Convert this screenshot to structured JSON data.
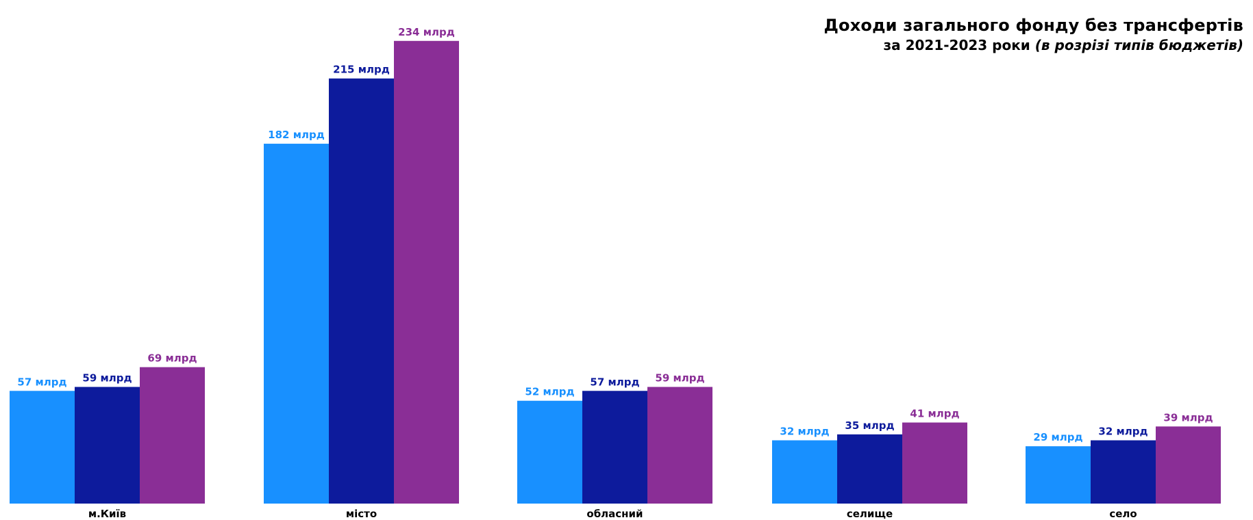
{
  "chart_data": {
    "type": "bar",
    "title": "Доходи загального фонду без трансфертів",
    "subtitle_main": "за 2021-2023 роки",
    "subtitle_italic": "(в розрізі типів бюджетів)",
    "categories": [
      "м.Київ",
      "місто",
      "обласний",
      "селище",
      "село"
    ],
    "series": [
      {
        "key": "s2021",
        "values": [
          57,
          182,
          52,
          32,
          29
        ],
        "labels": [
          "57 млрд",
          "182 млрд",
          "52 млрд",
          "32 млрд",
          "29 млрд"
        ],
        "color": "#1890ff"
      },
      {
        "key": "s2022",
        "values": [
          59,
          215,
          57,
          35,
          32
        ],
        "labels": [
          "59 млрд",
          "215 млрд",
          "57 млрд",
          "35 млрд",
          "32 млрд"
        ],
        "color": "#0d1b9c"
      },
      {
        "key": "s2023",
        "values": [
          69,
          234,
          59,
          41,
          39
        ],
        "labels": [
          "69 млрд",
          "234 млрд",
          "59 млрд",
          "41 млрд",
          "39 млрд"
        ],
        "color": "#8a2e96"
      }
    ],
    "ylim": [
      0,
      245
    ],
    "grid": false,
    "legend": "none"
  }
}
